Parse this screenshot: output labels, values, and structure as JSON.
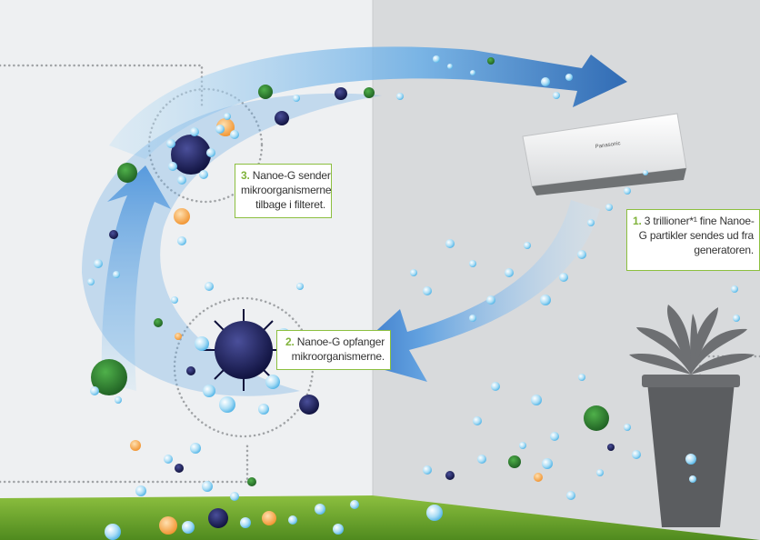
{
  "callouts": {
    "step1": {
      "number": "1.",
      "lines": [
        "3 trillioner*¹ fine Nanoe-",
        "G partikler sendes ud fra",
        "generatoren."
      ]
    },
    "step2": {
      "number": "2.",
      "lines": [
        "Nanoe-G opfanger",
        "mikroorganismerne."
      ]
    },
    "step3": {
      "number": "3.",
      "lines": [
        "Nanoe-G sender",
        "mikroorganismerne",
        "tilbage i filteret."
      ]
    }
  },
  "brand": "Panasonic",
  "colors": {
    "accent_green": "#7fb23a",
    "arrow_blue": "#3a78c9",
    "wall_left": "#eef0f2",
    "wall_right": "#d9dbdd",
    "floor": "#6ea431"
  },
  "icons": [
    "air-conditioner-icon",
    "plant-pot-icon",
    "microbe-icon",
    "nanoe-particle-icon"
  ]
}
